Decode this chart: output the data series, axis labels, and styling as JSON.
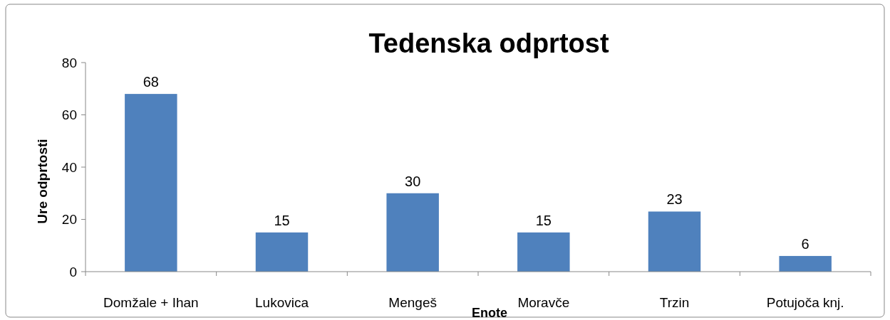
{
  "chart_data": {
    "type": "bar",
    "title": "Tedenska odprtost",
    "xlabel": "Enote",
    "ylabel": "Ure odprtosti",
    "categories": [
      "Domžale + Ihan",
      "Lukovica",
      "Mengeš",
      "Moravče",
      "Trzin",
      "Potujoča knj."
    ],
    "values": [
      68,
      15,
      30,
      15,
      23,
      6
    ],
    "color": "#4f81bd",
    "ylim": [
      0,
      80
    ],
    "yticks": [
      0,
      20,
      40,
      60,
      80
    ],
    "grid": false,
    "data_labels": true
  }
}
